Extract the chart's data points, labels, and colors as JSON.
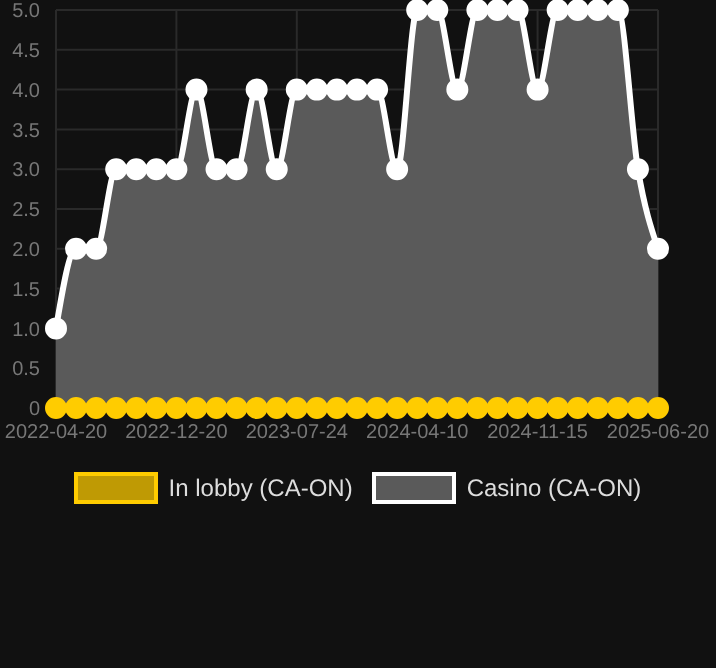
{
  "chart_data": {
    "type": "area",
    "categories": [
      "2022-04-20",
      null,
      null,
      null,
      null,
      null,
      "2022-12-20",
      null,
      null,
      null,
      null,
      null,
      "2023-07-24",
      null,
      null,
      null,
      null,
      null,
      "2024-04-10",
      null,
      null,
      null,
      null,
      null,
      "2024-11-15",
      null,
      null,
      null,
      null,
      null,
      "2025-06-20"
    ],
    "series": [
      {
        "name": "In lobby (CA-ON)",
        "type": "line",
        "color": "#ffcc00",
        "values": [
          0,
          0,
          0,
          0,
          0,
          0,
          0,
          0,
          0,
          0,
          0,
          0,
          0,
          0,
          0,
          0,
          0,
          0,
          0,
          0,
          0,
          0,
          0,
          0,
          0,
          0,
          0,
          0,
          0,
          0,
          0
        ]
      },
      {
        "name": "Casino (CA-ON)",
        "color": "#5a5a5a",
        "values": [
          1,
          2,
          2,
          3,
          3,
          3,
          3,
          4,
          3,
          3,
          4,
          3,
          4,
          4,
          4,
          4,
          4,
          3,
          5,
          5,
          4,
          5,
          5,
          5,
          4,
          5,
          5,
          5,
          5,
          3,
          2
        ]
      }
    ],
    "ylim": [
      0,
      5
    ],
    "yticks": [
      0,
      0.5,
      {
        "value": 1,
        "label": "1.0"
      },
      1.5,
      {
        "value": 2,
        "label": "2.0"
      },
      2.5,
      {
        "value": 3,
        "label": "3.0"
      },
      3.5,
      {
        "value": 4,
        "label": "4.0"
      },
      4.5,
      {
        "value": 5,
        "label": "5.0"
      }
    ],
    "grid": true,
    "legend": "bottom",
    "marker": "circle"
  }
}
